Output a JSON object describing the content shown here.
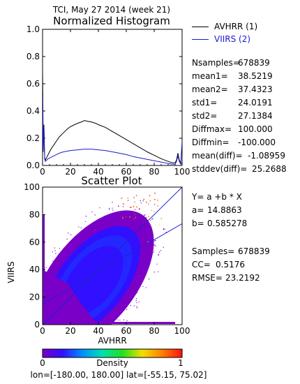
{
  "header": {
    "title": "TCI,  May 27 2014 (week 21)"
  },
  "legend": [
    {
      "label": "AVHRR (1)",
      "color": "#000000"
    },
    {
      "label": "VIIRS (2)",
      "color": "#1a1acc"
    }
  ],
  "stats": [
    {
      "label": "Nsamples=",
      "value": "678839"
    },
    {
      "label": "mean1=",
      "value": "38.5219"
    },
    {
      "label": "mean2=",
      "value": "37.4323"
    },
    {
      "label": "std1=",
      "value": "24.0191"
    },
    {
      "label": "std2=",
      "value": "27.1384"
    },
    {
      "label": "Diffmax=",
      "value": "100.000"
    },
    {
      "label": "Diffmin=",
      "value": "-100.000"
    },
    {
      "label": "mean(diff)=",
      "value": "-1.08959"
    },
    {
      "label": "stddev(diff)=",
      "value": "25.2688"
    }
  ],
  "regression": {
    "equation": "Y= a +b * X",
    "a_label": "a=",
    "a_value": "14.8863",
    "b_label": "b=",
    "b_value": "0.585278",
    "samples_label": "Samples=",
    "samples_value": "678839",
    "cc_label": "CC=",
    "cc_value": "0.5176",
    "rmse_label": "RMSE=",
    "rmse_value": "23.2192"
  },
  "colorbar": {
    "label": "Density",
    "min_label": "0",
    "max_label": "1",
    "colors": [
      "#7a00c8",
      "#3010ff",
      "#0090ff",
      "#00e0b0",
      "#20e020",
      "#f0e000",
      "#ff8000",
      "#ff1010"
    ]
  },
  "footer": {
    "text": "lon=[-180.00, 180.00] lat=[-55.15, 75.02]"
  },
  "chart_data": [
    {
      "type": "line",
      "title": "Normalized Histogram",
      "xlim": [
        0,
        100
      ],
      "ylim": [
        0,
        1.0
      ],
      "xticks": [
        0,
        20,
        40,
        60,
        80,
        100
      ],
      "yticks": [
        0.0,
        0.2,
        0.4,
        0.6,
        0.8,
        1.0
      ],
      "ytick_labels": [
        "0.0",
        "0.2",
        "0.4",
        "0.6",
        "0.8",
        "1.0"
      ],
      "series": [
        {
          "name": "AVHRR (1)",
          "color": "#000000",
          "x": [
            0,
            0.5,
            1,
            1.5,
            2,
            3,
            4,
            6,
            8,
            10,
            12,
            15,
            18,
            20,
            23,
            25,
            28,
            30,
            32,
            35,
            38,
            40,
            45,
            50,
            55,
            60,
            65,
            70,
            75,
            80,
            85,
            90,
            93,
            95,
            96,
            97,
            98,
            99,
            100
          ],
          "y": [
            0.7,
            0.15,
            0.3,
            0.06,
            0.04,
            0.06,
            0.08,
            0.12,
            0.15,
            0.18,
            0.21,
            0.24,
            0.27,
            0.285,
            0.3,
            0.31,
            0.32,
            0.33,
            0.325,
            0.32,
            0.31,
            0.3,
            0.28,
            0.25,
            0.22,
            0.19,
            0.16,
            0.13,
            0.1,
            0.075,
            0.05,
            0.03,
            0.02,
            0.02,
            0.04,
            0.09,
            0.04,
            0.02,
            0.01
          ]
        },
        {
          "name": "VIIRS (2)",
          "color": "#1a1acc",
          "x": [
            0,
            0.5,
            1,
            1.5,
            2,
            3,
            4,
            6,
            8,
            10,
            12,
            15,
            20,
            25,
            30,
            35,
            40,
            45,
            50,
            55,
            60,
            65,
            70,
            75,
            80,
            85,
            90,
            93,
            95,
            96,
            97,
            98,
            99,
            100
          ],
          "y": [
            0.5,
            0.1,
            0.28,
            0.05,
            0.03,
            0.04,
            0.05,
            0.06,
            0.07,
            0.08,
            0.09,
            0.1,
            0.11,
            0.115,
            0.12,
            0.12,
            0.115,
            0.11,
            0.1,
            0.09,
            0.08,
            0.065,
            0.055,
            0.045,
            0.035,
            0.025,
            0.015,
            0.01,
            0.01,
            0.03,
            0.07,
            0.03,
            0.01,
            0.18
          ]
        }
      ]
    },
    {
      "type": "scatter",
      "title": "Scatter Plot",
      "xlabel": "AVHRR",
      "ylabel": "VIIRS",
      "xlim": [
        0,
        100
      ],
      "ylim": [
        0,
        100
      ],
      "xticks": [
        0,
        20,
        40,
        60,
        80,
        100
      ],
      "yticks": [
        0,
        20,
        40,
        60,
        80,
        100
      ],
      "regression_line": {
        "intercept": 14.8863,
        "slope": 0.585278,
        "color": "#2020d0"
      },
      "identity_line": {
        "color": "#2020d0"
      },
      "density": {
        "core_center": [
          33,
          30
        ],
        "shape": "elongated along y = x"
      }
    }
  ]
}
